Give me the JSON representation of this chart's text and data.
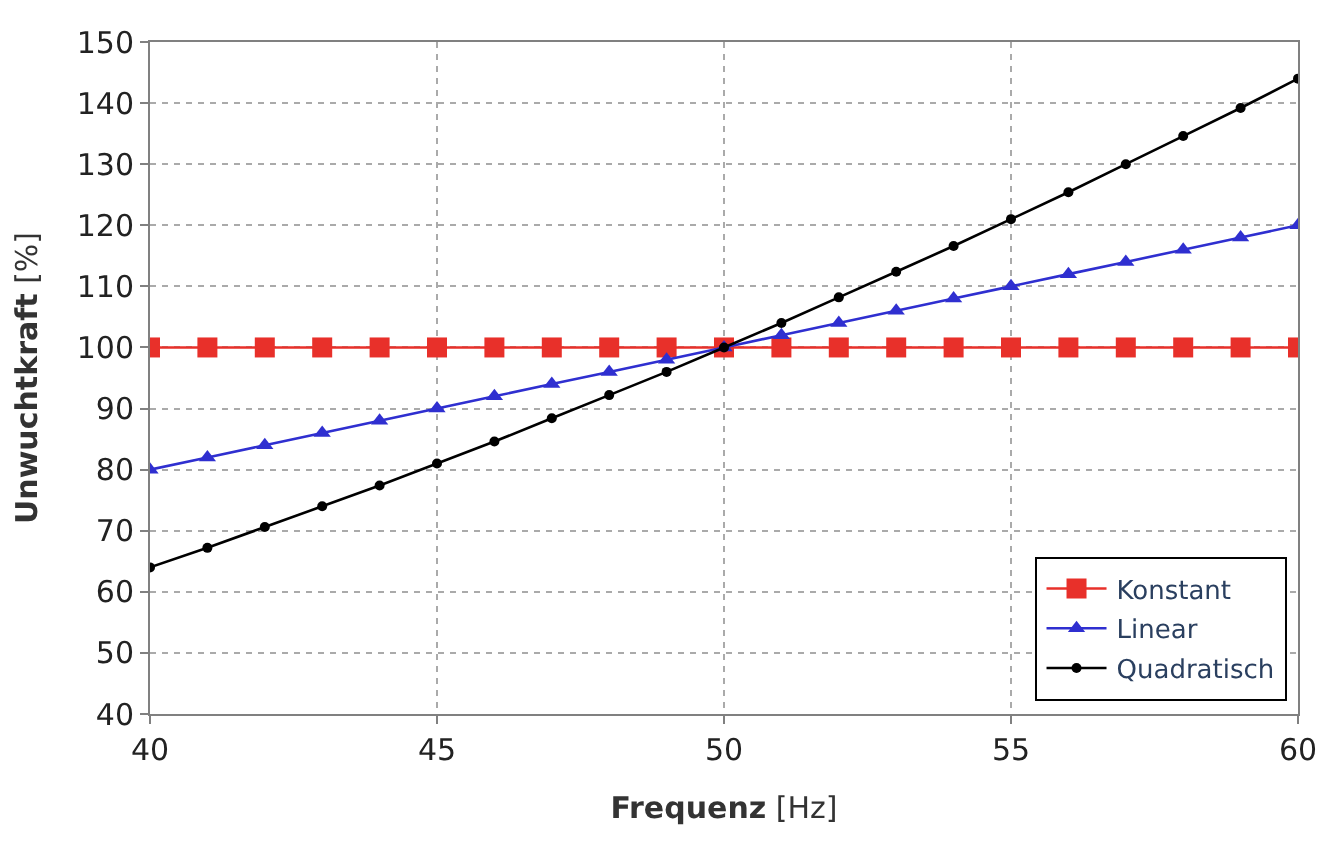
{
  "chart_data": {
    "type": "line",
    "xlabel": "Frequenz [Hz]",
    "ylabel": "Unwuchtkraft [%]",
    "x": [
      40,
      41,
      42,
      43,
      44,
      45,
      46,
      47,
      48,
      49,
      50,
      51,
      52,
      53,
      54,
      55,
      56,
      57,
      58,
      59,
      60
    ],
    "series": [
      {
        "name": "Konstant",
        "color": "#e8302a",
        "marker": "square",
        "values": [
          100,
          100,
          100,
          100,
          100,
          100,
          100,
          100,
          100,
          100,
          100,
          100,
          100,
          100,
          100,
          100,
          100,
          100,
          100,
          100,
          100
        ]
      },
      {
        "name": "Linear",
        "color": "#2f2fd0",
        "marker": "triangle",
        "values": [
          80,
          82,
          84,
          86,
          88,
          90,
          92,
          94,
          96,
          98,
          100,
          102,
          104,
          106,
          108,
          110,
          112,
          114,
          116,
          118,
          120
        ]
      },
      {
        "name": "Quadratisch",
        "color": "#000000",
        "marker": "circle",
        "values": [
          64,
          67.2,
          70.6,
          74.0,
          77.4,
          81,
          84.6,
          88.4,
          92.2,
          96.0,
          100,
          104.0,
          108.2,
          112.4,
          116.6,
          121,
          125.4,
          130.0,
          134.6,
          139.2,
          144
        ]
      }
    ],
    "xlim": [
      40,
      60
    ],
    "xticks": [
      40,
      45,
      50,
      55,
      60
    ],
    "ylim": [
      40,
      150
    ],
    "yticks": [
      40,
      50,
      60,
      70,
      80,
      90,
      100,
      110,
      120,
      130,
      140,
      150
    ],
    "grid": true,
    "legend": "bottom right",
    "line_style": "solid"
  }
}
